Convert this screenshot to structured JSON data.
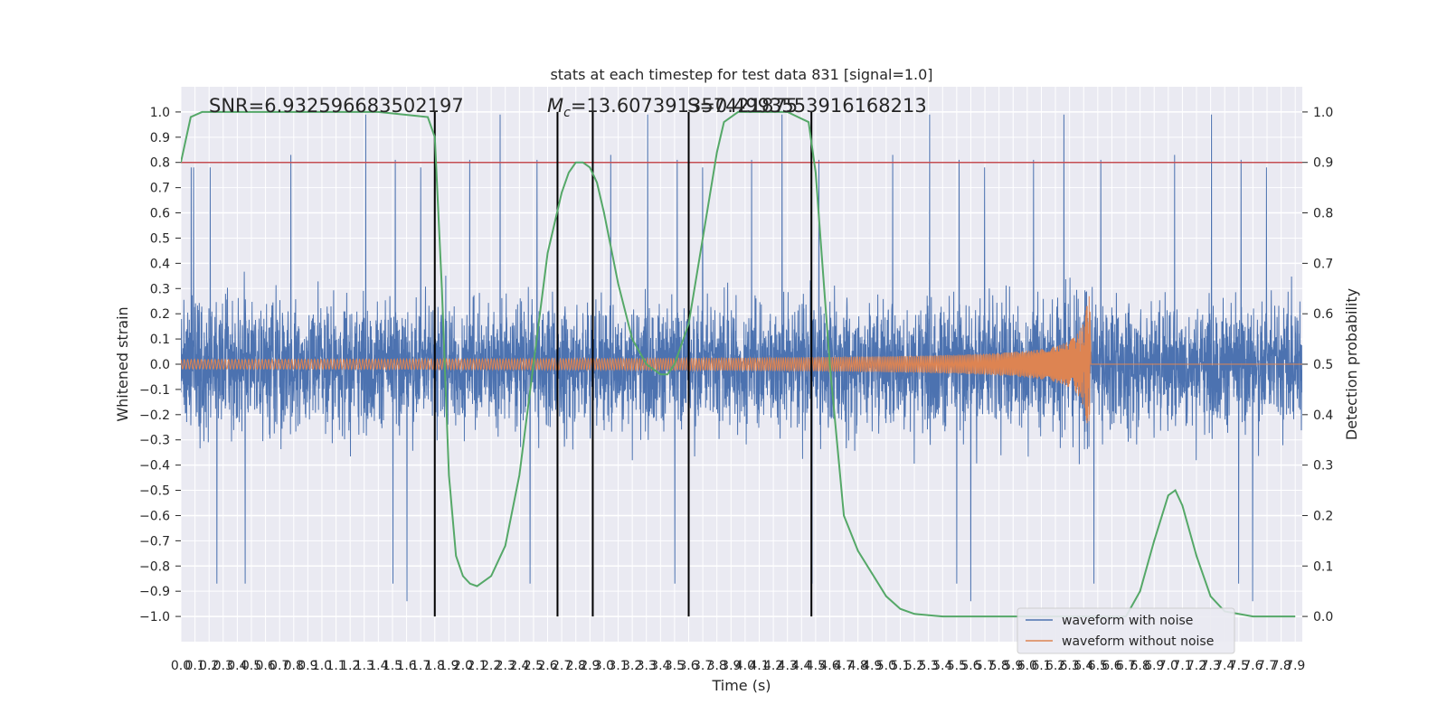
{
  "chart_data": {
    "type": "line",
    "title": "stats at each timestep for test data 831 [signal=1.0]",
    "xlabel": "Time (s)",
    "ylabel": "Whitened strain",
    "y2label": "Detection probability",
    "xlim": [
      0.0,
      7.95
    ],
    "ylim": [
      -1.1,
      1.1
    ],
    "y2lim": [
      -0.05,
      1.05
    ],
    "x_tick_step": 0.1,
    "y_tick_step": 0.1,
    "y2_tick_step": 0.1,
    "grid": true,
    "legend_position": "lower-right",
    "annotations": {
      "snr": "SNR=6.932596683502197",
      "mc_symbol": "M",
      "mc_subscript": "c",
      "mc_value": "=13.607391357421875",
      "second_value": "S=0.4993553916168213"
    },
    "series": [
      {
        "name": "waveform with noise",
        "axis": "left",
        "color": "#4c72b0",
        "envelope": {
          "typical_abs": 0.5,
          "peaks_pos": [
            0.78,
            0.78,
            0.81,
            0.78,
            0.99,
            0.81,
            0.83
          ],
          "peaks_neg": [
            -0.91,
            -0.98,
            -0.94,
            -0.87
          ]
        }
      },
      {
        "name": "waveform without noise",
        "axis": "left",
        "color": "#dd8452",
        "chirp": {
          "start_x": 0.0,
          "merger_x": 6.45,
          "start_amplitude": 0.01,
          "peak_amplitude": 0.27
        }
      },
      {
        "name": "Detection probability",
        "axis": "right",
        "color": "#55a868",
        "x": [
          0.0,
          0.07,
          0.15,
          0.3,
          0.6,
          1.0,
          1.4,
          1.75,
          1.8,
          1.85,
          1.9,
          1.95,
          2.0,
          2.05,
          2.1,
          2.2,
          2.3,
          2.4,
          2.5,
          2.6,
          2.7,
          2.75,
          2.8,
          2.85,
          2.9,
          2.95,
          3.0,
          3.1,
          3.2,
          3.3,
          3.4,
          3.45,
          3.5,
          3.6,
          3.7,
          3.8,
          3.85,
          3.95,
          4.1,
          4.3,
          4.45,
          4.5,
          4.6,
          4.7,
          4.8,
          5.0,
          5.1,
          5.2,
          5.4,
          6.0,
          6.7,
          6.8,
          6.9,
          7.0,
          7.05,
          7.1,
          7.2,
          7.3,
          7.4,
          7.6,
          7.9
        ],
        "values": [
          0.9,
          0.99,
          1.0,
          1.0,
          1.0,
          1.0,
          1.0,
          0.99,
          0.95,
          0.65,
          0.28,
          0.12,
          0.08,
          0.065,
          0.06,
          0.08,
          0.14,
          0.28,
          0.5,
          0.72,
          0.84,
          0.88,
          0.9,
          0.9,
          0.89,
          0.86,
          0.8,
          0.66,
          0.55,
          0.5,
          0.48,
          0.48,
          0.5,
          0.58,
          0.75,
          0.92,
          0.98,
          1.0,
          1.0,
          1.0,
          0.98,
          0.88,
          0.5,
          0.2,
          0.13,
          0.04,
          0.015,
          0.005,
          0.0,
          0.0,
          0.0,
          0.05,
          0.15,
          0.24,
          0.25,
          0.22,
          0.12,
          0.04,
          0.01,
          0.0,
          0.0
        ]
      }
    ],
    "threshold_line": {
      "y2": 0.9,
      "color": "#c44e52"
    },
    "vertical_lines": {
      "x": [
        1.8,
        2.67,
        2.92,
        3.6,
        4.47
      ],
      "y_from": -1.0,
      "y_to": 1.0,
      "color": "#000000"
    }
  }
}
